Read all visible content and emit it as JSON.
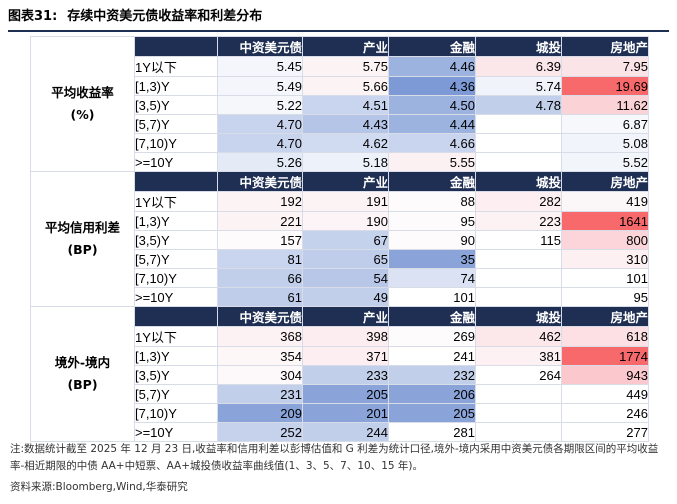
{
  "title": {
    "label": "图表31:",
    "text": "存续中资美元债收益率和利差分布"
  },
  "columns": [
    "中资美元债",
    "产业",
    "金融",
    "城投",
    "房地产"
  ],
  "sections": [
    {
      "name_line1": "平均收益率",
      "name_line2": "(%)",
      "rows": [
        {
          "term": "1Y以下",
          "values": [
            "5.45",
            "5.75",
            "4.46",
            "6.39",
            "7.95"
          ]
        },
        {
          "term": "[1,3)Y",
          "values": [
            "5.49",
            "5.66",
            "4.36",
            "5.74",
            "19.69"
          ]
        },
        {
          "term": "[3,5)Y",
          "values": [
            "5.22",
            "4.51",
            "4.50",
            "4.78",
            "11.62"
          ]
        },
        {
          "term": "[5,7)Y",
          "values": [
            "4.70",
            "4.43",
            "4.44",
            "",
            "6.87"
          ]
        },
        {
          "term": "[7,10)Y",
          "values": [
            "4.70",
            "4.62",
            "4.66",
            "",
            "5.08"
          ]
        },
        {
          "term": ">=10Y",
          "values": [
            "5.26",
            "5.18",
            "5.55",
            "",
            "5.52"
          ]
        }
      ]
    },
    {
      "name_line1": "平均信用利差",
      "name_line2": "(BP)",
      "rows": [
        {
          "term": "1Y以下",
          "values": [
            "192",
            "191",
            "88",
            "282",
            "419"
          ]
        },
        {
          "term": "[1,3)Y",
          "values": [
            "221",
            "190",
            "95",
            "223",
            "1641"
          ]
        },
        {
          "term": "[3,5)Y",
          "values": [
            "157",
            "67",
            "90",
            "115",
            "800"
          ]
        },
        {
          "term": "[5,7)Y",
          "values": [
            "81",
            "65",
            "35",
            "",
            "310"
          ]
        },
        {
          "term": "[7,10)Y",
          "values": [
            "66",
            "54",
            "74",
            "",
            "101"
          ]
        },
        {
          "term": ">=10Y",
          "values": [
            "61",
            "49",
            "101",
            "",
            "95"
          ]
        }
      ]
    },
    {
      "name_line1": "境外-境内",
      "name_line2": "(BP)",
      "rows": [
        {
          "term": "1Y以下",
          "values": [
            "368",
            "398",
            "269",
            "462",
            "618"
          ]
        },
        {
          "term": "[1,3)Y",
          "values": [
            "354",
            "371",
            "241",
            "381",
            "1774"
          ]
        },
        {
          "term": "[3,5)Y",
          "values": [
            "304",
            "233",
            "232",
            "264",
            "943"
          ]
        },
        {
          "term": "[5,7)Y",
          "values": [
            "231",
            "205",
            "206",
            "",
            "449"
          ]
        },
        {
          "term": "[7,10)Y",
          "values": [
            "209",
            "201",
            "205",
            "",
            "246"
          ]
        },
        {
          "term": ">=10Y",
          "values": [
            "252",
            "244",
            "281",
            "",
            "277"
          ]
        }
      ]
    }
  ],
  "cell_colors": [
    [
      [
        "#f4f6fb",
        "#fbf3f4",
        "#9cb3df",
        "#fbe7ea",
        "#fbe4e7"
      ],
      [
        "#f4f6fb",
        "#fbf3f4",
        "#7d9ad6",
        "#f0f3fa",
        "#f8696b"
      ],
      [
        "#f5f7fb",
        "#c9d5ee",
        "#9cb3df",
        "#c2cfea",
        "#fbd2d6"
      ],
      [
        "#c8d4ee",
        "#b4c5e8",
        "#9cb3df",
        "#ffffff",
        "#f6f8fc"
      ],
      [
        "#c8d4ee",
        "#d0daf0",
        "#c9d5ee",
        "#ffffff",
        "#f1f4fa"
      ],
      [
        "#e5ebf6",
        "#edf1f9",
        "#fbf0f2",
        "#ffffff",
        "#f2f5fa"
      ]
    ],
    [
      [
        "#fcf3f5",
        "#fcf3f5",
        "#fdfbfc",
        "#fceef1",
        "#fbf6f8"
      ],
      [
        "#fcf3f5",
        "#fcf4f6",
        "#fdfbfc",
        "#fcf2f4",
        "#f8696b"
      ],
      [
        "#fdfbfc",
        "#c5d2ec",
        "#fdfbfc",
        "#ffffff",
        "#fbd5d9"
      ],
      [
        "#c9d5ee",
        "#c0cdea",
        "#8aa4da",
        "#ffffff",
        "#fdf0f2"
      ],
      [
        "#c2cfea",
        "#b8c7e7",
        "#dae2f3",
        "#ffffff",
        "#ffffff"
      ],
      [
        "#c0cdea",
        "#c2cfea",
        "#ffffff",
        "#ffffff",
        "#ffffff"
      ]
    ],
    [
      [
        "#fcf2f4",
        "#fcedf0",
        "#fdfbfc",
        "#fce8eb",
        "#fce0e4"
      ],
      [
        "#fdf7f8",
        "#fceef1",
        "#ffffff",
        "#fdf1f3",
        "#f8696b"
      ],
      [
        "#fdf9fa",
        "#c2cfea",
        "#c2cfea",
        "#ffffff",
        "#fbc9cd"
      ],
      [
        "#c2cfea",
        "#8aa4da",
        "#8aa4da",
        "#ffffff",
        "#ffffff"
      ],
      [
        "#8aa4da",
        "#8aa4da",
        "#8aa4da",
        "#ffffff",
        "#ffffff"
      ],
      [
        "#c6d2ec",
        "#c2cfea",
        "#ffffff",
        "#ffffff",
        "#ffffff"
      ]
    ]
  ],
  "footer": {
    "note": "注:数据统计截至 2025 年 12 月 23 日,收益率和信用利差以彭博估值和 G 利差为统计口径,境外-境内采用中资美元债各期限区间的平均收益率-相近期限的中债 AA+中短票、AA+城投债收益率曲线值(1、3、5、7、10、15 年)。",
    "source": "资料来源:Bloomberg,Wind,华泰研究"
  }
}
